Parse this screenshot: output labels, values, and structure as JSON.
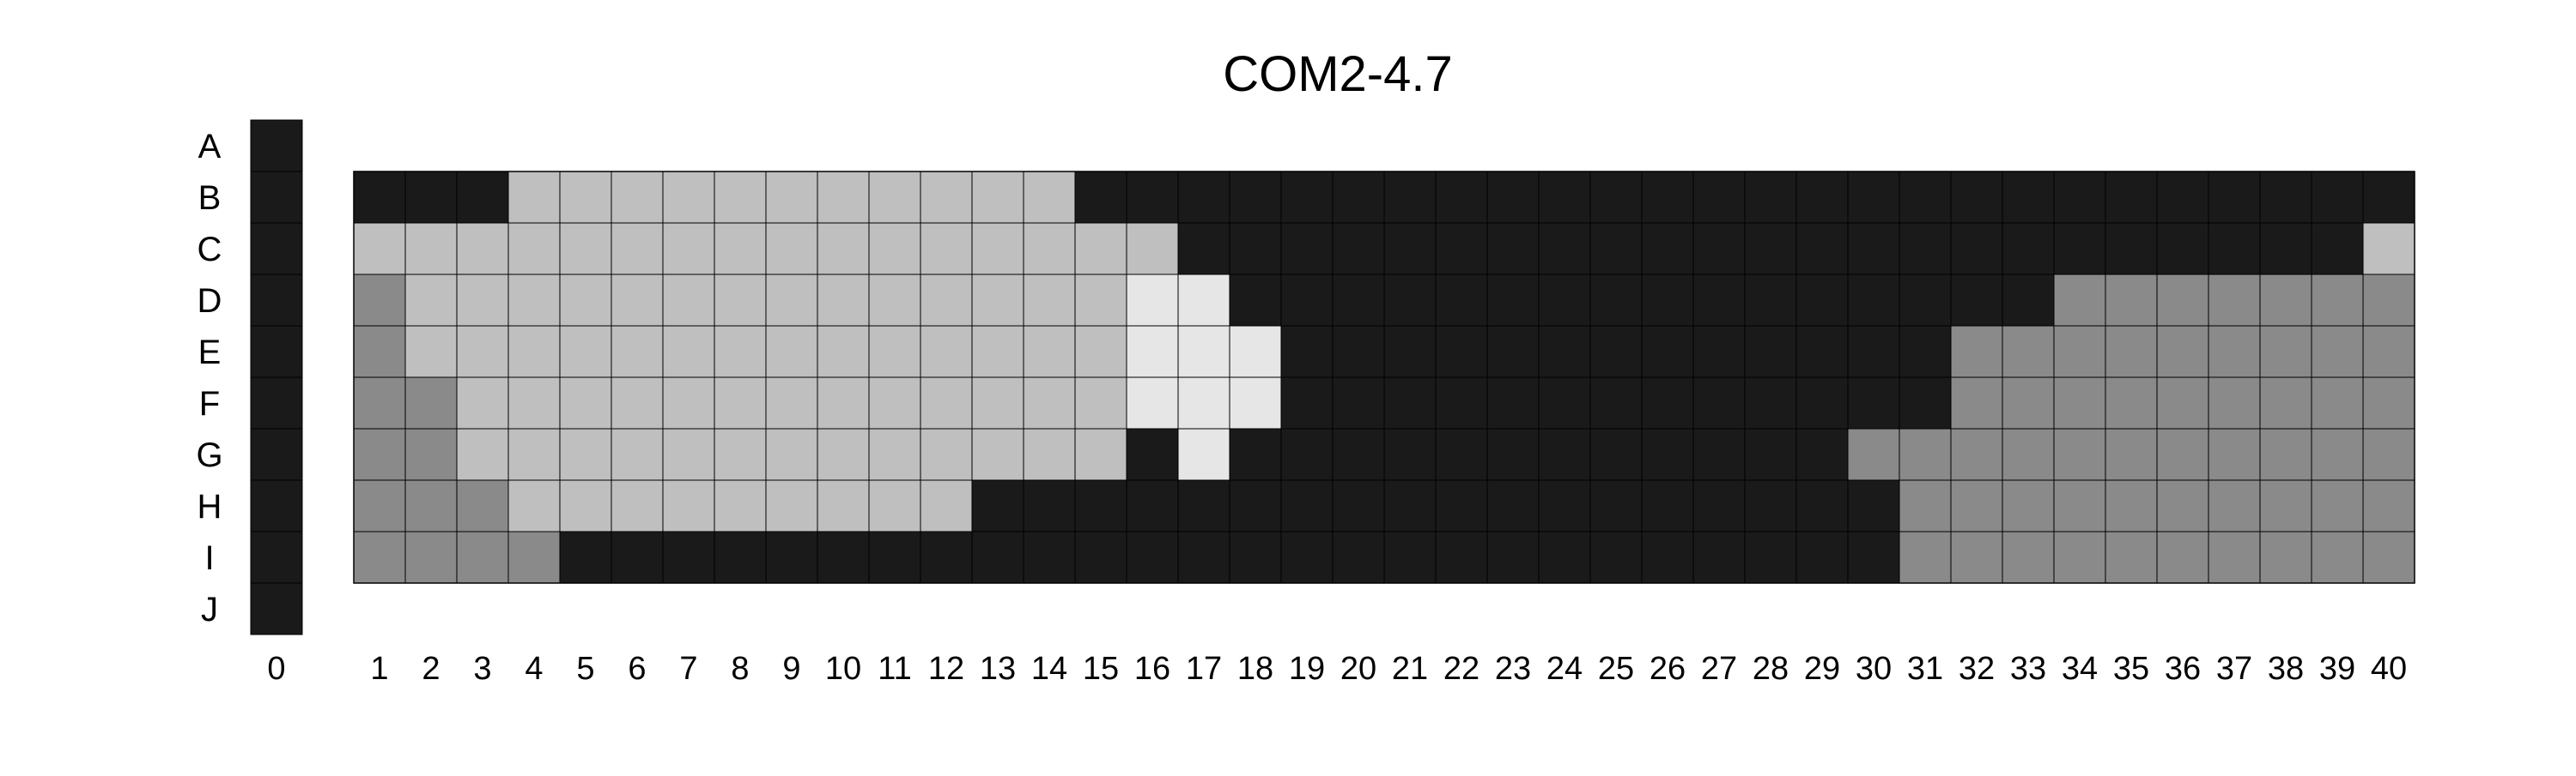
{
  "chart_data": {
    "type": "heatmap",
    "title": "COM2-4.7",
    "xlabel": "",
    "ylabel": "",
    "grid": true,
    "rows": [
      "A",
      "B",
      "C",
      "D",
      "E",
      "F",
      "G",
      "H",
      "I",
      "J"
    ],
    "columns": [
      "0",
      "1",
      "2",
      "3",
      "4",
      "5",
      "6",
      "7",
      "8",
      "9",
      "10",
      "11",
      "12",
      "13",
      "14",
      "15",
      "16",
      "17",
      "18",
      "19",
      "20",
      "21",
      "22",
      "23",
      "24",
      "25",
      "26",
      "27",
      "28",
      "29",
      "30",
      "31",
      "32",
      "33",
      "34",
      "35",
      "36",
      "37",
      "38",
      "39",
      "40"
    ],
    "control_column": {
      "column": "0",
      "rows": [
        "A",
        "B",
        "C",
        "D",
        "E",
        "F",
        "G",
        "H",
        "I",
        "J"
      ],
      "level": 0
    },
    "main_rows": [
      "B",
      "C",
      "D",
      "E",
      "F",
      "G",
      "H",
      "I"
    ],
    "main_columns_range": [
      1,
      40
    ],
    "levels": {
      "0": "#1a1a1a",
      "1": "#8a8a8a",
      "2": "#bfbfbf",
      "3": "#e6e6e6"
    },
    "matrix": [
      [
        0,
        0,
        0,
        2,
        2,
        2,
        2,
        2,
        2,
        2,
        2,
        2,
        2,
        2,
        0,
        0,
        0,
        0,
        0,
        0,
        0,
        0,
        0,
        0,
        0,
        0,
        0,
        0,
        0,
        0,
        0,
        0,
        0,
        0,
        0,
        0,
        0,
        0,
        0,
        0
      ],
      [
        2,
        2,
        2,
        2,
        2,
        2,
        2,
        2,
        2,
        2,
        2,
        2,
        2,
        2,
        2,
        2,
        0,
        0,
        0,
        0,
        0,
        0,
        0,
        0,
        0,
        0,
        0,
        0,
        0,
        0,
        0,
        0,
        0,
        0,
        0,
        0,
        0,
        0,
        0,
        2
      ],
      [
        1,
        2,
        2,
        2,
        2,
        2,
        2,
        2,
        2,
        2,
        2,
        2,
        2,
        2,
        2,
        3,
        3,
        0,
        0,
        0,
        0,
        0,
        0,
        0,
        0,
        0,
        0,
        0,
        0,
        0,
        0,
        0,
        0,
        1,
        1,
        1,
        1,
        1,
        1,
        1
      ],
      [
        1,
        2,
        2,
        2,
        2,
        2,
        2,
        2,
        2,
        2,
        2,
        2,
        2,
        2,
        2,
        3,
        3,
        3,
        0,
        0,
        0,
        0,
        0,
        0,
        0,
        0,
        0,
        0,
        0,
        0,
        0,
        1,
        1,
        1,
        1,
        1,
        1,
        1,
        1,
        1
      ],
      [
        1,
        1,
        2,
        2,
        2,
        2,
        2,
        2,
        2,
        2,
        2,
        2,
        2,
        2,
        2,
        3,
        3,
        3,
        0,
        0,
        0,
        0,
        0,
        0,
        0,
        0,
        0,
        0,
        0,
        0,
        0,
        1,
        1,
        1,
        1,
        1,
        1,
        1,
        1,
        1
      ],
      [
        1,
        1,
        2,
        2,
        2,
        2,
        2,
        2,
        2,
        2,
        2,
        2,
        2,
        2,
        2,
        0,
        3,
        0,
        0,
        0,
        0,
        0,
        0,
        0,
        0,
        0,
        0,
        0,
        0,
        1,
        1,
        1,
        1,
        1,
        1,
        1,
        1,
        1,
        1,
        1
      ],
      [
        1,
        1,
        1,
        2,
        2,
        2,
        2,
        2,
        2,
        2,
        2,
        2,
        0,
        0,
        0,
        0,
        0,
        0,
        0,
        0,
        0,
        0,
        0,
        0,
        0,
        0,
        0,
        0,
        0,
        0,
        1,
        1,
        1,
        1,
        1,
        1,
        1,
        1,
        1,
        1
      ],
      [
        1,
        1,
        1,
        1,
        0,
        0,
        0,
        0,
        0,
        0,
        0,
        0,
        0,
        0,
        0,
        0,
        0,
        0,
        0,
        0,
        0,
        0,
        0,
        0,
        0,
        0,
        0,
        0,
        0,
        0,
        1,
        1,
        1,
        1,
        1,
        1,
        1,
        1,
        1,
        1
      ]
    ]
  }
}
